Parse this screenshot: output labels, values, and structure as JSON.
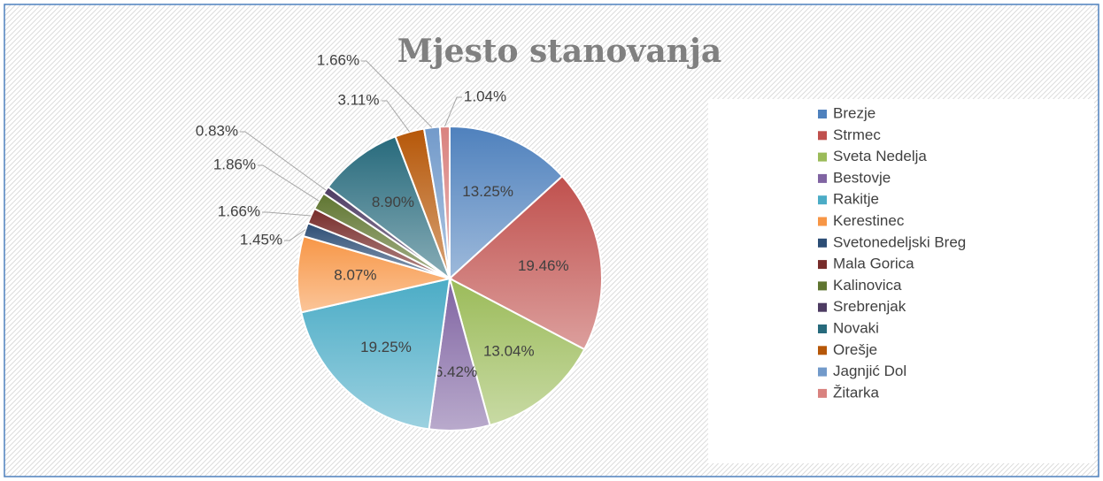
{
  "chart_data": {
    "type": "pie",
    "title": "Mjesto stanovanja",
    "categories": [
      "Brezje",
      "Strmec",
      "Sveta Nedelja",
      "Bestovje",
      "Rakitje",
      "Kerestinec",
      "Svetonedeljski Breg",
      "Mala Gorica",
      "Kalinovica",
      "Srebrenjak",
      "Novaki",
      "Orešje",
      "Jagnjić Dol",
      "Žitarka"
    ],
    "values": [
      13.25,
      19.46,
      13.04,
      6.42,
      19.25,
      8.07,
      1.45,
      1.66,
      1.86,
      0.83,
      8.9,
      3.11,
      1.66,
      1.04
    ],
    "value_labels": [
      "13.25%",
      "19.46%",
      "13.04%",
      "6.42%",
      "19.25%",
      "8.07%",
      "1.45%",
      "1.66%",
      "1.86%",
      "0.83%",
      "8.90%",
      "3.11%",
      "1.66%",
      "1.04%"
    ],
    "colors": [
      "#4f81bd",
      "#c0504d",
      "#9bbb59",
      "#8064a2",
      "#4bacc6",
      "#f79646",
      "#2c4d75",
      "#772c2a",
      "#5f7530",
      "#4d3b62",
      "#276a7c",
      "#b65708",
      "#729aca",
      "#d9827f"
    ],
    "legend": "right"
  }
}
